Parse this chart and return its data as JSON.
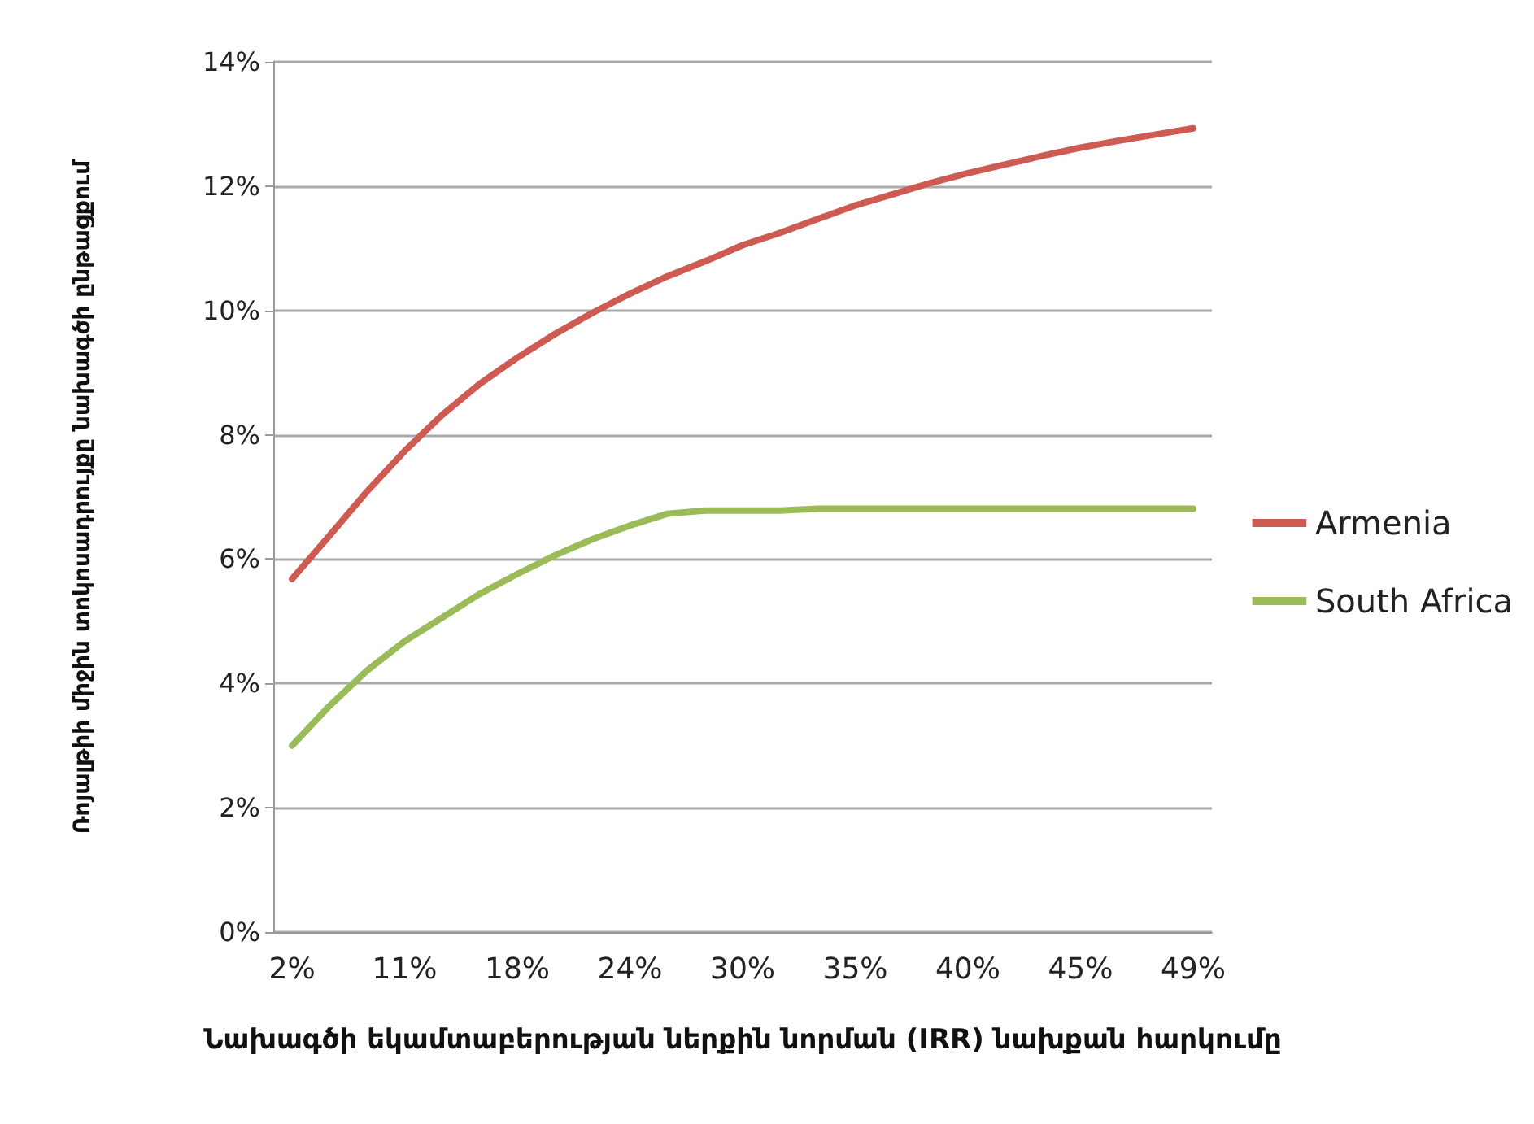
{
  "chart_data": {
    "type": "line",
    "xlabel": "Նախագծի եկամտաբերության ներքին նորման (IRR) նախքան հարկումը",
    "ylabel": "Ռոյալթիի միջին տոկոսադրույքը նախագծի ընթացքում",
    "categories": [
      "2%",
      null,
      null,
      "11%",
      null,
      null,
      "18%",
      null,
      null,
      "24%",
      null,
      null,
      "30%",
      null,
      null,
      "35%",
      null,
      null,
      "40%",
      null,
      null,
      "45%",
      null,
      null,
      "49%"
    ],
    "series": [
      {
        "name": "Armenia",
        "color": "#cd5b52",
        "values": [
          5.68,
          6.38,
          7.09,
          7.74,
          8.32,
          8.82,
          9.24,
          9.62,
          9.96,
          10.27,
          10.55,
          10.79,
          11.05,
          11.25,
          11.47,
          11.69,
          11.87,
          12.05,
          12.21,
          12.35,
          12.49,
          12.62,
          12.73,
          12.83,
          12.93
        ]
      },
      {
        "name": "South Africa",
        "color": "#9bbb59",
        "values": [
          3.0,
          3.64,
          4.21,
          4.68,
          5.06,
          5.44,
          5.76,
          6.06,
          6.32,
          6.54,
          6.73,
          6.78,
          6.78,
          6.78,
          6.81,
          6.81,
          6.81,
          6.81,
          6.81,
          6.81,
          6.81,
          6.81,
          6.81,
          6.81,
          6.81
        ]
      }
    ],
    "ylim": [
      0,
      14
    ],
    "yticks": [
      {
        "value": 0,
        "label": "0%"
      },
      {
        "value": 2,
        "label": "2%"
      },
      {
        "value": 4,
        "label": "4%"
      },
      {
        "value": 6,
        "label": "6%"
      },
      {
        "value": 8,
        "label": "8%"
      },
      {
        "value": 10,
        "label": "10%"
      },
      {
        "value": 12,
        "label": "12%"
      },
      {
        "value": 14,
        "label": "14%"
      }
    ],
    "grid": "y",
    "legend": "right",
    "marker": "none",
    "line_style": "solid"
  }
}
